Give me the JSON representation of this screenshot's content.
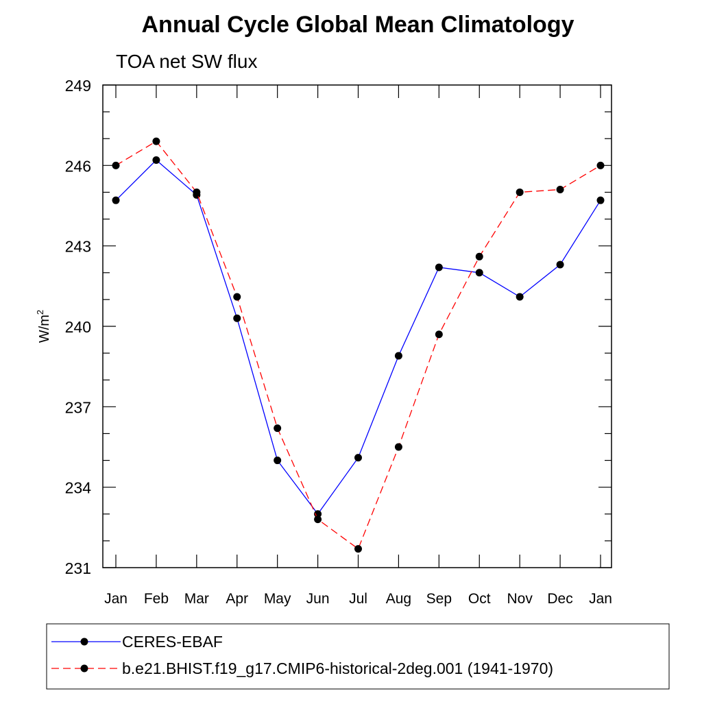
{
  "chart_data": {
    "type": "line",
    "title": "Annual Cycle Global Mean Climatology",
    "subtitle": "TOA net SW flux",
    "ylabel": "W/m",
    "ylabel_superscript": "2",
    "ylim": [
      231,
      249
    ],
    "yticks": [
      231,
      234,
      237,
      240,
      243,
      246,
      249
    ],
    "categories": [
      "Jan",
      "Feb",
      "Mar",
      "Apr",
      "May",
      "Jun",
      "Jul",
      "Aug",
      "Sep",
      "Oct",
      "Nov",
      "Dec",
      "Jan"
    ],
    "grid": false,
    "legend_position": "bottom",
    "series": [
      {
        "name": "CERES-EBAF",
        "color": "#0000ff",
        "line_style": "solid",
        "marker": "filled-circle",
        "values": [
          244.7,
          246.2,
          244.9,
          240.3,
          235.0,
          233.0,
          235.1,
          238.9,
          242.2,
          242.0,
          241.1,
          242.3,
          244.7
        ]
      },
      {
        "name": "b.e21.BHIST.f19_g17.CMIP6-historical-2deg.001 (1941-1970)",
        "color": "#ff0000",
        "line_style": "dashed",
        "marker": "filled-circle",
        "values": [
          246.0,
          246.9,
          245.0,
          241.1,
          236.2,
          232.8,
          231.7,
          235.5,
          239.7,
          242.6,
          245.0,
          245.1,
          246.0
        ]
      }
    ]
  }
}
